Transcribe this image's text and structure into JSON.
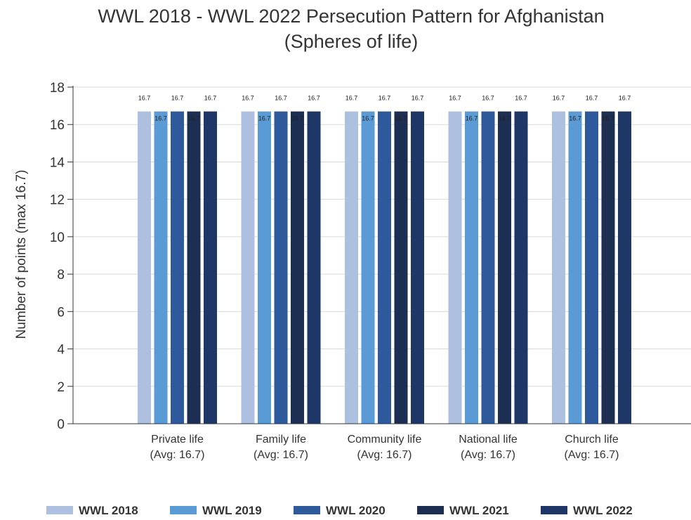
{
  "chart_data": {
    "type": "bar",
    "title": "WWL 2018 - WWL 2022 Persecution Pattern for Afghanistan",
    "subtitle": "(Spheres of life)",
    "xlabel": "",
    "ylabel": "Number of points (max 16.7)",
    "ylim": [
      0,
      18
    ],
    "yticks": [
      0,
      2,
      4,
      6,
      8,
      10,
      12,
      14,
      16,
      18
    ],
    "grid": true,
    "legend_position": "bottom",
    "categories": [
      {
        "name": "Private life",
        "avg": "(Avg: 16.7)"
      },
      {
        "name": "Family life",
        "avg": "(Avg: 16.7)"
      },
      {
        "name": "Community life",
        "avg": "(Avg: 16.7)"
      },
      {
        "name": "National life",
        "avg": "(Avg: 16.7)"
      },
      {
        "name": "Church life",
        "avg": "(Avg: 16.7)"
      }
    ],
    "series": [
      {
        "name": "WWL 2018",
        "color": "#adc0df",
        "values": [
          16.7,
          16.7,
          16.7,
          16.7,
          16.7
        ],
        "labels": [
          "16.7",
          "16.7",
          "16.7",
          "16.7",
          "16.7"
        ]
      },
      {
        "name": "WWL 2019",
        "color": "#5b9bd5",
        "values": [
          16.7,
          16.7,
          16.7,
          16.7,
          16.7
        ],
        "labels": [
          "16.7",
          "16.7",
          "16.7",
          "16.7",
          "16.7"
        ]
      },
      {
        "name": "WWL 2020",
        "color": "#2e5a9c",
        "values": [
          16.7,
          16.7,
          16.7,
          16.7,
          16.7
        ],
        "labels": [
          "16.7",
          "16.7",
          "16.7",
          "16.7",
          "16.7"
        ]
      },
      {
        "name": "WWL 2021",
        "color": "#1c2e52",
        "values": [
          16.7,
          16.7,
          16.7,
          16.7,
          16.7
        ],
        "labels": [
          "16.7",
          "16.7",
          "16.7",
          "16.7",
          "16.7"
        ]
      },
      {
        "name": "WWL 2022",
        "color": "#1f3766",
        "values": [
          16.7,
          16.7,
          16.7,
          16.7,
          16.7
        ],
        "labels": [
          "16.7",
          "16.7",
          "16.7",
          "16.7",
          "16.7"
        ]
      }
    ]
  }
}
